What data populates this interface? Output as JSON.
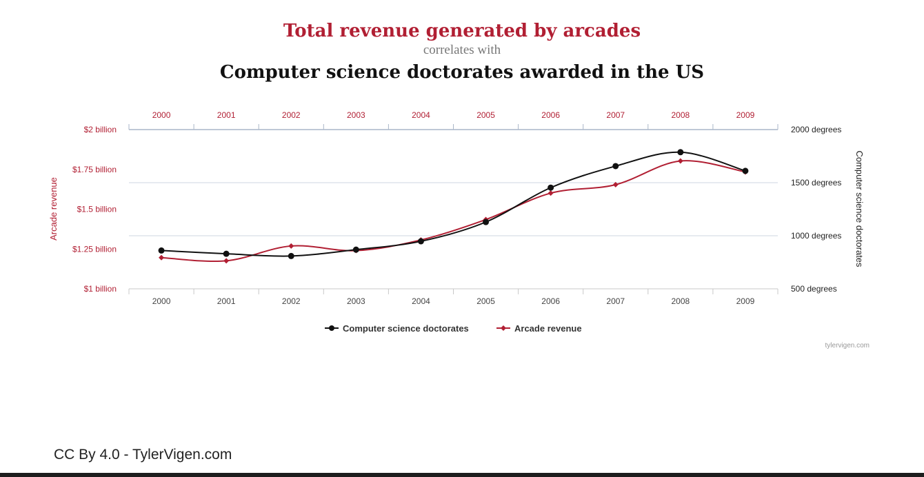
{
  "title": "Total revenue generated by arcades",
  "subtitle": "correlates with",
  "second_title": "Computer science doctorates awarded in the US",
  "watermark": "tylervigen.com",
  "credit": "CC By 4.0 - TylerVigen.com",
  "colors": {
    "arcade": "#b11f33",
    "doctorates": "#111111",
    "grid": "#cdd5e0",
    "tick_text": "#444444"
  },
  "chart_data": {
    "type": "line",
    "categories": [
      "2000",
      "2001",
      "2002",
      "2003",
      "2004",
      "2005",
      "2006",
      "2007",
      "2008",
      "2009"
    ],
    "left_axis": {
      "label": "Arcade revenue",
      "ticks": [
        "$1 billion",
        "$1.25 billion",
        "$1.5 billion",
        "$1.75 billion",
        "$2 billion"
      ],
      "range": [
        1.0,
        2.0
      ],
      "unit": "billion USD"
    },
    "right_axis": {
      "label": "Computer science doctorates",
      "ticks": [
        "500 degrees",
        "1000 degrees",
        "1500 degrees",
        "2000 degrees"
      ],
      "range": [
        500,
        2000
      ],
      "unit": "degrees"
    },
    "series": [
      {
        "name": "Computer science doctorates",
        "axis": "right",
        "marker": "circle",
        "color": "#111111",
        "values": [
          861,
          830,
          809,
          869,
          948,
          1129,
          1453,
          1656,
          1787,
          1611
        ]
      },
      {
        "name": "Arcade revenue",
        "axis": "left",
        "marker": "diamond",
        "color": "#b11f33",
        "values": [
          1.196,
          1.176,
          1.269,
          1.24,
          1.307,
          1.435,
          1.601,
          1.654,
          1.803,
          1.734
        ]
      }
    ],
    "legend_position": "bottom-center",
    "grid": true
  }
}
